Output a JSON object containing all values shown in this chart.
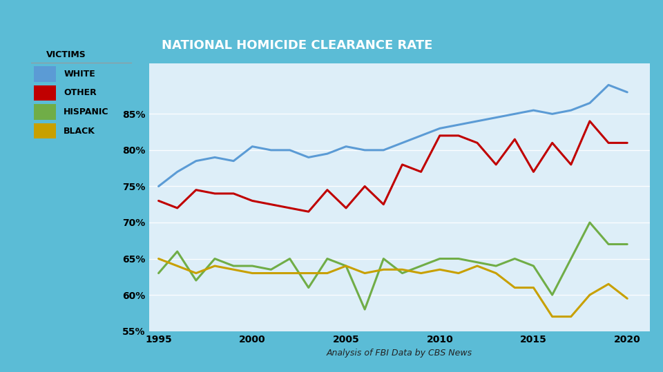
{
  "title": "NATIONAL HOMICIDE CLEARANCE RATE",
  "subtitle": "Analysis of FBI Data by CBS News",
  "legend_title": "VICTIMS",
  "legend_entries": [
    "WHITE",
    "OTHER",
    "HISPANIC",
    "BLACK"
  ],
  "colors": {
    "white": "#5B9BD5",
    "other": "#C00000",
    "hispanic": "#70AD47",
    "black": "#C8A000"
  },
  "years": [
    1995,
    1996,
    1997,
    1998,
    1999,
    2000,
    2001,
    2002,
    2003,
    2004,
    2005,
    2006,
    2007,
    2008,
    2009,
    2010,
    2011,
    2012,
    2013,
    2014,
    2015,
    2016,
    2017,
    2018,
    2019,
    2020
  ],
  "white": [
    75.0,
    77.0,
    78.5,
    79.0,
    78.5,
    80.5,
    80.0,
    80.0,
    79.0,
    79.5,
    80.5,
    80.0,
    80.0,
    81.0,
    82.0,
    83.0,
    83.5,
    84.0,
    84.5,
    85.0,
    85.5,
    85.0,
    85.5,
    86.5,
    89.0,
    88.0
  ],
  "other": [
    73.0,
    72.0,
    74.5,
    74.0,
    74.0,
    73.0,
    72.5,
    72.0,
    71.5,
    74.5,
    72.0,
    75.0,
    72.5,
    78.0,
    77.0,
    82.0,
    82.0,
    81.0,
    78.0,
    81.5,
    77.0,
    81.0,
    78.0,
    84.0,
    81.0,
    81.0
  ],
  "hispanic": [
    63.0,
    66.0,
    62.0,
    65.0,
    64.0,
    64.0,
    63.5,
    65.0,
    61.0,
    65.0,
    64.0,
    58.0,
    65.0,
    63.0,
    64.0,
    65.0,
    65.0,
    64.5,
    64.0,
    65.0,
    64.0,
    60.0,
    65.0,
    70.0,
    67.0,
    67.0
  ],
  "black": [
    65.0,
    64.0,
    63.0,
    64.0,
    63.5,
    63.0,
    63.0,
    63.0,
    63.0,
    63.0,
    64.0,
    63.0,
    63.5,
    63.5,
    63.0,
    63.5,
    63.0,
    64.0,
    63.0,
    61.0,
    61.0,
    57.0,
    57.0,
    60.0,
    61.5,
    59.5
  ],
  "ylim": [
    55,
    92
  ],
  "yticks": [
    55,
    60,
    65,
    70,
    75,
    80,
    85
  ],
  "ytick_labels": [
    "55%",
    "60%",
    "65%",
    "70%",
    "75%",
    "80%",
    "85%"
  ],
  "bg_color_outer": "#5bbcd6",
  "bg_color_chart": "#ddeef8",
  "legend_bg": "#e8f4fa",
  "title_bg": "#111111",
  "title_color": "#ffffff",
  "line_width": 2.2
}
